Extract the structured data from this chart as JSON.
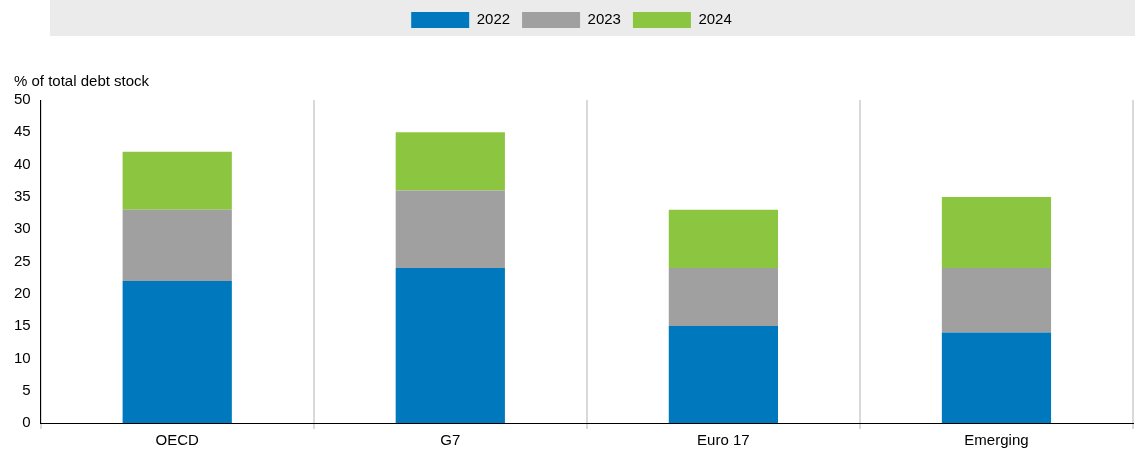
{
  "chart_data": {
    "type": "bar",
    "ylabel": "% of total debt stock",
    "categories": [
      "OECD",
      "G7",
      "Euro 17",
      "Emerging"
    ],
    "series": [
      {
        "name": "2022",
        "color": "#0078be",
        "values": [
          22,
          24,
          15,
          14
        ]
      },
      {
        "name": "2023",
        "color": "#a0a0a0",
        "values": [
          11,
          12,
          9,
          10
        ]
      },
      {
        "name": "2024",
        "color": "#8cc640",
        "values": [
          9,
          9,
          9,
          11
        ]
      }
    ],
    "stacked": true,
    "ylim": [
      0,
      50
    ],
    "yticks": [
      0,
      5,
      10,
      15,
      20,
      25,
      30,
      35,
      40,
      45,
      50
    ],
    "grid": "x",
    "legend": "top"
  }
}
